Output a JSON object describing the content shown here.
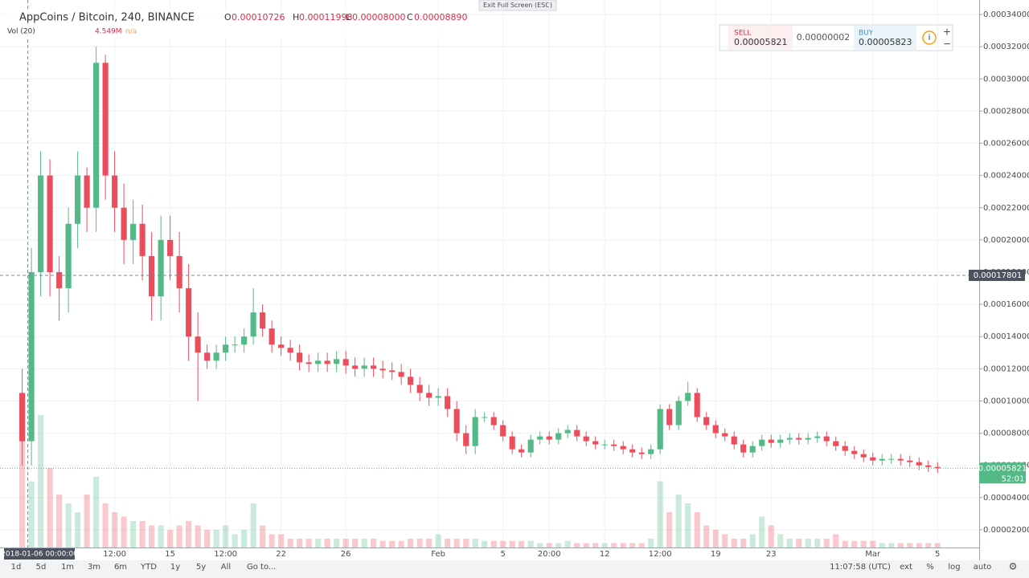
{
  "exit_fullscreen": "Exit Full Screen (ESC)",
  "header": {
    "symbol": "AppCoins / Bitcoin, 240, BINANCE",
    "ohlc": [
      {
        "key": "O",
        "value": "0.00010726"
      },
      {
        "key": "H",
        "value": "0.00011998"
      },
      {
        "key": "L",
        "value": "0.00008000"
      },
      {
        "key": "C",
        "value": "0.00008890"
      }
    ],
    "volume_title": "Vol (20)",
    "volume_value": "4.549M",
    "volume_ma": "n/a"
  },
  "trade": {
    "sell_label": "SELL",
    "sell_price": "0.00005821",
    "spread": "0.00000002",
    "buy_label": "BUY",
    "buy_price": "0.00005823"
  },
  "toolbar": {
    "ranges": [
      "1d",
      "5d",
      "1m",
      "3m",
      "6m",
      "YTD",
      "1y",
      "5y",
      "All"
    ],
    "goto": "Go to...",
    "clock": "11:07:58 (UTC)",
    "options": [
      "ext",
      "%",
      "log",
      "auto"
    ]
  },
  "chart_data": {
    "type": "candlestick",
    "up_color": "#53b987",
    "down_color": "#eb4d5c",
    "grid": true,
    "open": [
      0.000105,
      7.5e-05,
      0.00018,
      0.00024,
      0.00018,
      0.00017,
      0.00021,
      0.00024,
      0.00022,
      0.00031,
      0.00024,
      0.00022,
      0.0002,
      0.00021,
      0.00019,
      0.000165,
      0.0002,
      0.00019,
      0.00017,
      0.00014,
      0.00013,
      0.000125,
      0.00013,
      0.000135,
      0.000135,
      0.00014,
      0.000155,
      0.000145,
      0.000135,
      0.000133,
      0.00013,
      0.000124,
      0.000123,
      0.000125,
      0.000123,
      0.000126,
      0.000122,
      0.00012,
      0.000122,
      0.00012,
      0.000119,
      0.000118,
      0.000115,
      0.00011,
      0.000105,
      0.000102,
      0.000103,
      9.5e-05,
      8e-05,
      7.2e-05,
      9e-05,
      9e-05,
      8.5e-05,
      7.8e-05,
      7e-05,
      6.8e-05,
      7.6e-05,
      7.8e-05,
      7.6e-05,
      8e-05,
      8.2e-05,
      7.8e-05,
      7.5e-05,
      7.3e-05,
      7.3e-05,
      7.2e-05,
      7e-05,
      6.8e-05,
      6.7e-05,
      7e-05,
      9.5e-05,
      8.5e-05,
      0.0001,
      0.000105,
      9e-05,
      8.5e-05,
      8e-05,
      7.8e-05,
      7.3e-05,
      6.8e-05,
      7.2e-05,
      7.6e-05,
      7.4e-05,
      7.6e-05,
      7.7e-05,
      7.6e-05,
      7.7e-05,
      7.8e-05,
      7.5e-05,
      7.2e-05,
      6.9e-05,
      6.7e-05,
      6.5e-05,
      6.3e-05,
      6.4e-05,
      6.4e-05,
      6.3e-05,
      6.2e-05,
      6e-05,
      5.9e-05
    ],
    "high": [
      0.00012,
      0.000195,
      0.000255,
      0.00025,
      0.00019,
      0.00022,
      0.000255,
      0.000245,
      0.00032,
      0.000315,
      0.000255,
      0.000235,
      0.000225,
      0.000222,
      0.000205,
      0.000215,
      0.000215,
      0.000205,
      0.000185,
      0.000155,
      0.000135,
      0.000135,
      0.00014,
      0.00014,
      0.000145,
      0.00017,
      0.00016,
      0.00015,
      0.00014,
      0.000138,
      0.000135,
      0.000129,
      0.00013,
      0.00013,
      0.000131,
      0.000131,
      0.000127,
      0.000127,
      0.000127,
      0.000125,
      0.000124,
      0.000123,
      0.00012,
      0.000115,
      0.00011,
      0.000108,
      0.000108,
      0.0001,
      8.5e-05,
      9.5e-05,
      9.3e-05,
      9.3e-05,
      8.8e-05,
      8.1e-05,
      7.3e-05,
      7.9e-05,
      8.1e-05,
      8.1e-05,
      8.3e-05,
      8.5e-05,
      8.5e-05,
      8.1e-05,
      7.8e-05,
      7.6e-05,
      7.6e-05,
      7.5e-05,
      7.3e-05,
      7.1e-05,
      7.3e-05,
      9.8e-05,
      9.8e-05,
      0.000103,
      0.000112,
      0.000108,
      9.3e-05,
      8.8e-05,
      8.3e-05,
      8.1e-05,
      7.6e-05,
      7.5e-05,
      7.9e-05,
      7.9e-05,
      7.9e-05,
      8e-05,
      8e-05,
      8e-05,
      8.1e-05,
      8.1e-05,
      7.8e-05,
      7.5e-05,
      7.2e-05,
      7e-05,
      6.8e-05,
      6.7e-05,
      6.7e-05,
      6.7e-05,
      6.6e-05,
      6.5e-05,
      6.3e-05,
      6.2e-05
    ],
    "low": [
      6e-05,
      6e-05,
      0.000165,
      0.000165,
      0.00015,
      0.000155,
      0.000195,
      0.000205,
      0.000205,
      0.000225,
      0.000205,
      0.000185,
      0.000185,
      0.000175,
      0.00015,
      0.00015,
      0.000175,
      0.000155,
      0.000125,
      0.0001,
      0.00012,
      0.00012,
      0.000125,
      0.00013,
      0.00013,
      0.000135,
      0.00014,
      0.00013,
      0.000128,
      0.000125,
      0.000119,
      0.000118,
      0.000118,
      0.000118,
      0.000118,
      0.000117,
      0.000115,
      0.000115,
      0.000115,
      0.000114,
      0.000113,
      0.00011,
      0.000105,
      0.0001,
      9.7e-05,
      9.7e-05,
      9e-05,
      7.5e-05,
      6.7e-05,
      6.7e-05,
      8.7e-05,
      8.2e-05,
      7.5e-05,
      6.7e-05,
      6.5e-05,
      6.5e-05,
      7.3e-05,
      7.3e-05,
      7.3e-05,
      7.7e-05,
      7.5e-05,
      7.2e-05,
      7e-05,
      7e-05,
      6.9e-05,
      6.7e-05,
      6.5e-05,
      6.4e-05,
      6.4e-05,
      6.7e-05,
      8.2e-05,
      8.2e-05,
      9.7e-05,
      8.7e-05,
      8.2e-05,
      7.7e-05,
      7.5e-05,
      7e-05,
      6.5e-05,
      6.5e-05,
      6.9e-05,
      7.1e-05,
      7.1e-05,
      7.3e-05,
      7.3e-05,
      7.3e-05,
      7.4e-05,
      7.2e-05,
      6.9e-05,
      6.6e-05,
      6.4e-05,
      6.2e-05,
      6e-05,
      6e-05,
      6.1e-05,
      6e-05,
      5.9e-05,
      5.7e-05,
      5.6e-05,
      5.52e-05
    ],
    "close": [
      7.5e-05,
      0.00018,
      0.00024,
      0.00018,
      0.00017,
      0.00021,
      0.00024,
      0.00022,
      0.00031,
      0.00024,
      0.00022,
      0.0002,
      0.00021,
      0.00019,
      0.000165,
      0.0002,
      0.00019,
      0.00017,
      0.00014,
      0.00013,
      0.000125,
      0.00013,
      0.000135,
      0.000135,
      0.00014,
      0.000155,
      0.000145,
      0.000135,
      0.000133,
      0.00013,
      0.000124,
      0.000123,
      0.000125,
      0.000123,
      0.000126,
      0.000122,
      0.00012,
      0.000122,
      0.00012,
      0.000119,
      0.000118,
      0.000115,
      0.00011,
      0.000105,
      0.000102,
      0.000103,
      9.5e-05,
      8e-05,
      7.2e-05,
      9e-05,
      9e-05,
      8.5e-05,
      7.8e-05,
      7e-05,
      6.8e-05,
      7.6e-05,
      7.8e-05,
      7.6e-05,
      8e-05,
      8.2e-05,
      7.8e-05,
      7.5e-05,
      7.3e-05,
      7.3e-05,
      7.2e-05,
      7e-05,
      6.8e-05,
      6.7e-05,
      7e-05,
      9.5e-05,
      8.5e-05,
      0.0001,
      0.000105,
      9e-05,
      8.5e-05,
      8e-05,
      7.8e-05,
      7.3e-05,
      6.8e-05,
      7.2e-05,
      7.6e-05,
      7.4e-05,
      7.6e-05,
      7.7e-05,
      7.6e-05,
      7.7e-05,
      7.8e-05,
      7.5e-05,
      7.2e-05,
      6.9e-05,
      6.7e-05,
      6.5e-05,
      6.3e-05,
      6.4e-05,
      6.4e-05,
      6.3e-05,
      6.2e-05,
      6e-05,
      5.9e-05,
      5.82e-05
    ],
    "volume": [
      25,
      15,
      30,
      18,
      12,
      10,
      8,
      12,
      16,
      10,
      8,
      7,
      6,
      6,
      5,
      5,
      4,
      5,
      6,
      5,
      4,
      4,
      5,
      3,
      4,
      10,
      5,
      3,
      3,
      2,
      2,
      2,
      2,
      2,
      2,
      2,
      2,
      2,
      2,
      1.5,
      1.5,
      1.5,
      2,
      2,
      2,
      3,
      2,
      2,
      2,
      2,
      1.5,
      1.5,
      1.5,
      1.5,
      1.5,
      1.5,
      1,
      1,
      1,
      1.5,
      1,
      1,
      1,
      1,
      1,
      1,
      1,
      1,
      2,
      15,
      8,
      12,
      10,
      8,
      5,
      4,
      3,
      2,
      2,
      3,
      7,
      5,
      3,
      2,
      2,
      2,
      2,
      2,
      3,
      1.5,
      1.5,
      1.5,
      1.5,
      1,
      1,
      1,
      1,
      1,
      1,
      1
    ],
    "vlim": [
      0,
      40
    ],
    "xlim": [
      -2.4,
      103.5
    ],
    "xticks": [
      {
        "value": 10,
        "label": "12:00"
      },
      {
        "value": 16,
        "label": "15"
      },
      {
        "value": 22,
        "label": "12:00"
      },
      {
        "value": 28,
        "label": "22"
      },
      {
        "value": 35,
        "label": "26"
      },
      {
        "value": 45,
        "label": "Feb"
      },
      {
        "value": 52,
        "label": "5"
      },
      {
        "value": 57,
        "label": "20:00"
      },
      {
        "value": 63,
        "label": "12"
      },
      {
        "value": 69,
        "label": "12:00"
      },
      {
        "value": 75,
        "label": "19"
      },
      {
        "value": 81,
        "label": "23"
      },
      {
        "value": 92,
        "label": "Mar"
      },
      {
        "value": 99,
        "label": "5"
      }
    ],
    "ylim": [
      9e-06,
      0.000349
    ],
    "yticks": [
      {
        "value": 2e-05,
        "label": "0.00002000"
      },
      {
        "value": 4e-05,
        "label": "0.00004000"
      },
      {
        "value": 6e-05,
        "label": "0.00006000"
      },
      {
        "value": 8e-05,
        "label": "0.00008000"
      },
      {
        "value": 0.0001,
        "label": "0.00010000"
      },
      {
        "value": 0.00012,
        "label": "0.00012000"
      },
      {
        "value": 0.00014,
        "label": "0.00014000"
      },
      {
        "value": 0.00016,
        "label": "0.00016000"
      },
      {
        "value": 0.00018,
        "label": "0.00018000"
      },
      {
        "value": 0.0002,
        "label": "0.00020000"
      },
      {
        "value": 0.00022,
        "label": "0.00022000"
      },
      {
        "value": 0.00024,
        "label": "0.00024000"
      },
      {
        "value": 0.00026,
        "label": "0.00026000"
      },
      {
        "value": 0.00028,
        "label": "0.00028000"
      },
      {
        "value": 0.0003,
        "label": "0.00030000"
      },
      {
        "value": 0.00032,
        "label": "0.00032000"
      },
      {
        "value": 0.00034,
        "label": "0.00034000"
      }
    ],
    "crosshair": {
      "price": 0.00017801,
      "date_label": "2018-01-06 00:00:00"
    },
    "last_price": 5.821e-05,
    "countdown": "52:01"
  }
}
